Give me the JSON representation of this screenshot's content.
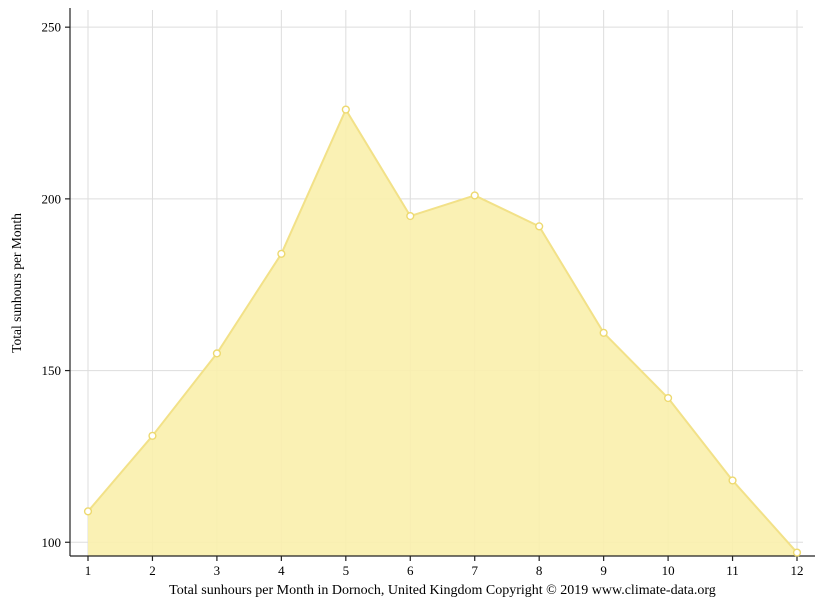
{
  "chart_data": {
    "type": "area",
    "title": "",
    "x": [
      1,
      2,
      3,
      4,
      5,
      6,
      7,
      8,
      9,
      10,
      11,
      12
    ],
    "values": [
      109,
      131,
      155,
      184,
      226,
      195,
      201,
      192,
      161,
      142,
      118,
      97
    ],
    "xlabel": "Total sunhours per Month in Dornoch, United Kingdom Copyright © 2019 www.climate-data.org",
    "ylabel": "Total sunhours per Month",
    "ylim": [
      96,
      255
    ],
    "yticks": [
      100,
      150,
      200,
      250
    ],
    "grid": true,
    "legend": "none",
    "colors": {
      "fill": "#FAF0AC",
      "line": "#F2E188",
      "marker_fill": "#FFFFFF",
      "marker_stroke": "#EDD96F",
      "grid": "#DDDDDD",
      "axis": "#222222",
      "text": "#000000"
    }
  }
}
